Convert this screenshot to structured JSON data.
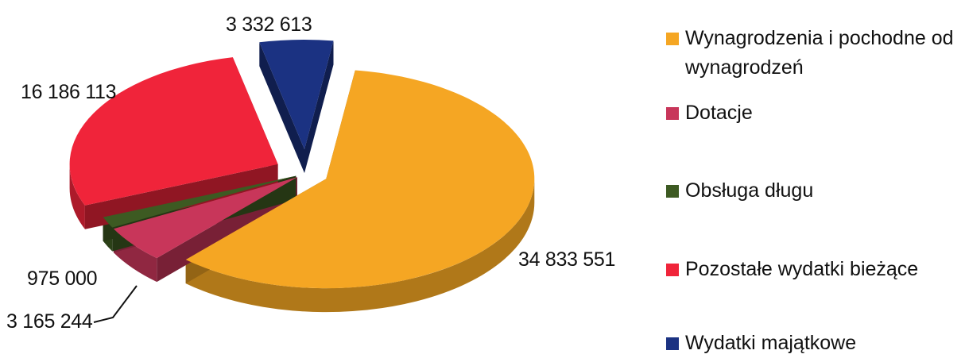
{
  "chart_data": {
    "type": "pie",
    "title": "",
    "slices": [
      {
        "label": "Wynagrodzenia i pochodne od wynagrodzeń",
        "value": 34833551,
        "value_label": "34 833 551",
        "color": "#F5A623"
      },
      {
        "label": "Dotacje",
        "value": 3165244,
        "value_label": "3 165 244",
        "color": "#C8365A"
      },
      {
        "label": "Obsługa długu",
        "value": 975000,
        "value_label": "975 000",
        "color": "#3D5A22"
      },
      {
        "label": "Pozostałe wydatki bieżące",
        "value": 16186113,
        "value_label": "16 186 113",
        "color": "#F0243A"
      },
      {
        "label": "Wydatki majątkowe",
        "value": 3332613,
        "value_label": "3 332 613",
        "color": "#1B3282"
      }
    ],
    "legend": {
      "position": "right",
      "entries": [
        {
          "line1": "Wynagrodzenia i pochodne od",
          "line2": "wynagrodzeń"
        },
        {
          "line1": "Dotacje"
        },
        {
          "line1": "Obsługa długu"
        },
        {
          "line1": "Pozostałe wydatki bieżące"
        },
        {
          "line1": "Wydatki majątkowe"
        }
      ]
    }
  }
}
